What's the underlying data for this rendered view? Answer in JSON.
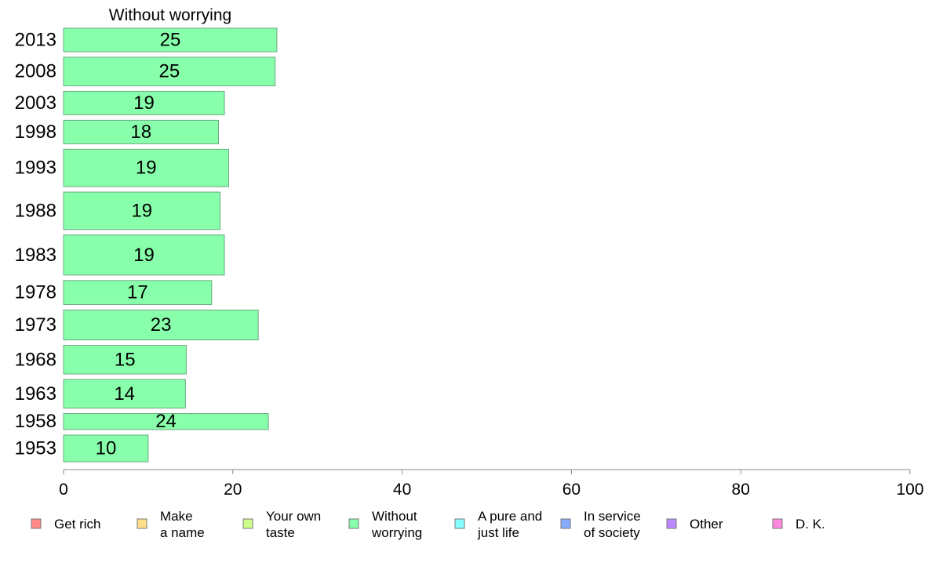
{
  "chart_data": {
    "type": "bar",
    "orientation": "horizontal",
    "title": "Without worrying",
    "categories": [
      "2013",
      "2008",
      "2003",
      "1998",
      "1993",
      "1988",
      "1983",
      "1978",
      "1973",
      "1968",
      "1963",
      "1958",
      "1953"
    ],
    "bar_weights": [
      0.88,
      1.07,
      0.88,
      0.88,
      1.4,
      1.4,
      1.5,
      0.9,
      1.12,
      1.07,
      1.07,
      0.6,
      1.0
    ],
    "values": [
      25.2,
      25,
      19,
      18.3,
      19.5,
      18.5,
      19,
      17.5,
      23,
      14.5,
      14.4,
      24.2,
      10
    ],
    "data_labels": [
      "25",
      "25",
      "19",
      "18",
      "19",
      "19",
      "19",
      "17",
      "23",
      "15",
      "14",
      "24",
      "10"
    ],
    "bar_color": "#88ffaa",
    "bar_border": "#6aa882",
    "xlim": [
      0,
      100
    ],
    "xticks": [
      "0",
      "20",
      "40",
      "60",
      "80",
      "100"
    ],
    "xtick_values": [
      0,
      20,
      40,
      60,
      80,
      100
    ],
    "grid": false,
    "legend": {
      "placement": "bottom",
      "items": [
        {
          "lines": [
            "Get rich"
          ],
          "color": "#ff8888"
        },
        {
          "lines": [
            "Make",
            "a name"
          ],
          "color": "#ffe088"
        },
        {
          "lines": [
            "Your own",
            "taste"
          ],
          "color": "#ccff88"
        },
        {
          "lines": [
            "Without",
            "worrying"
          ],
          "color": "#88ffaa"
        },
        {
          "lines": [
            "A pure and",
            "just life"
          ],
          "color": "#88ffff"
        },
        {
          "lines": [
            "In service",
            "of society"
          ],
          "color": "#88aaff"
        },
        {
          "lines": [
            "Other"
          ],
          "color": "#bb88ff"
        },
        {
          "lines": [
            "D. K."
          ],
          "color": "#ff88dd"
        }
      ]
    }
  }
}
